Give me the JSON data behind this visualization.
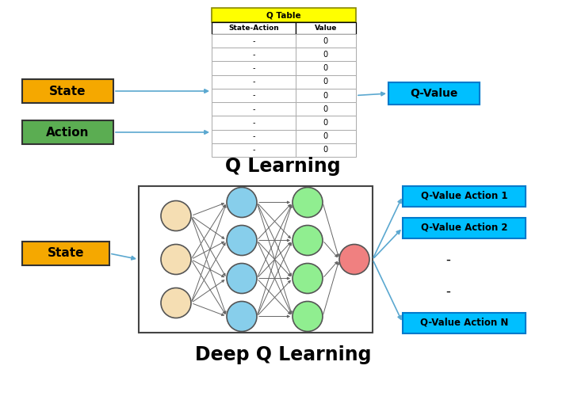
{
  "title_top": "Q Learning",
  "title_bottom": "Deep Q Learning",
  "state_color": "#F5A800",
  "action_color": "#5BAD52",
  "qvalue_color": "#00BFFF",
  "table_header_color": "#FFFF00",
  "arrow_color": "#5BA8D0",
  "conn_color": "#666666",
  "nn_border_color": "#444444",
  "node_input_color": "#F5DEB3",
  "node_h1_color": "#87CEEB",
  "node_h2_color": "#90EE90",
  "node_out_color": "#F08080",
  "table_rows": 9,
  "qvalue_outputs": [
    "Q-Value Action 1",
    "Q-Value Action 2",
    "-",
    "-",
    "Q-Value Action N"
  ]
}
